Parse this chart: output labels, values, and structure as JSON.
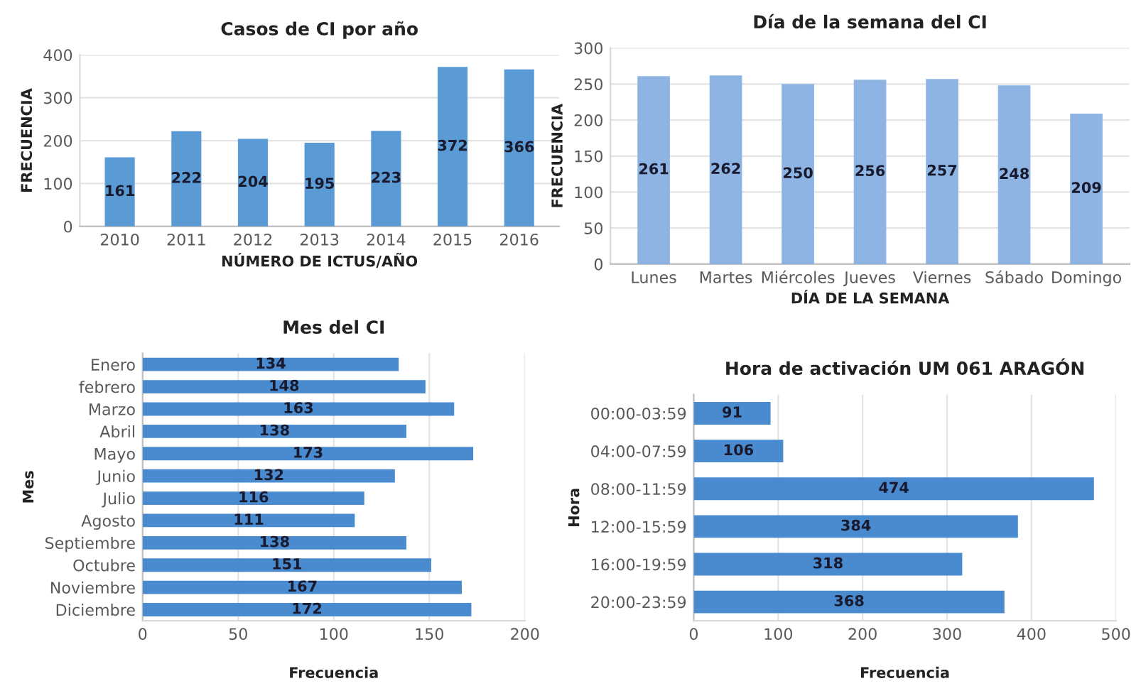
{
  "chart_data": [
    {
      "type": "bar",
      "title": "Casos de CI por año",
      "xlabel": "NÚMERO DE ICTUS/AÑO",
      "ylabel": "FRECUENCIA",
      "categories": [
        "2010",
        "2011",
        "2012",
        "2013",
        "2014",
        "2015",
        "2016"
      ],
      "values": [
        161,
        222,
        204,
        195,
        223,
        372,
        366
      ],
      "color": "#5b9bd5",
      "ylim": [
        0,
        400
      ],
      "yticks": [
        0,
        100,
        200,
        300,
        400
      ],
      "grid": "y",
      "data_labels": true
    },
    {
      "type": "bar",
      "title": "Día de la semana del CI",
      "xlabel": "DÍA DE LA SEMANA",
      "ylabel": "FRECUENCIA",
      "categories": [
        "Lunes",
        "Martes",
        "Miércoles",
        "Jueves",
        "Viernes",
        "Sábado",
        "Domingo"
      ],
      "values": [
        261,
        262,
        250,
        256,
        257,
        248,
        209
      ],
      "color": "#8db4e2",
      "ylim": [
        0,
        300
      ],
      "yticks": [
        0,
        50,
        100,
        150,
        200,
        250,
        300
      ],
      "grid": "y",
      "data_labels": true
    },
    {
      "type": "bar",
      "orientation": "horizontal",
      "title": "Mes del CI",
      "xlabel": "Frecuencia",
      "ylabel": "Mes",
      "categories": [
        "Enero",
        "febrero",
        "Marzo",
        "Abril",
        "Mayo",
        "Junio",
        "Julio",
        "Agosto",
        "Septiembre",
        "Octubre",
        "Noviembre",
        "Diciembre"
      ],
      "values": [
        134,
        148,
        163,
        138,
        173,
        132,
        116,
        111,
        138,
        151,
        167,
        172
      ],
      "color": "#4a8bd0",
      "xlim": [
        0,
        200
      ],
      "xticks": [
        0,
        50,
        100,
        150,
        200
      ],
      "grid": "x",
      "data_labels": true
    },
    {
      "type": "bar",
      "orientation": "horizontal",
      "title": "Hora de activación UM 061 ARAGÓN",
      "xlabel": "Frecuencia",
      "ylabel": "Hora",
      "categories": [
        "00:00-03:59",
        "04:00-07:59",
        "08:00-11:59",
        "12:00-15:59",
        "16:00-19:59",
        "20:00-23:59"
      ],
      "values": [
        91,
        106,
        474,
        384,
        318,
        368
      ],
      "color": "#4a8bd0",
      "xlim": [
        0,
        500
      ],
      "xticks": [
        0,
        100,
        200,
        300,
        400,
        500
      ],
      "grid": "x",
      "data_labels": true
    }
  ]
}
